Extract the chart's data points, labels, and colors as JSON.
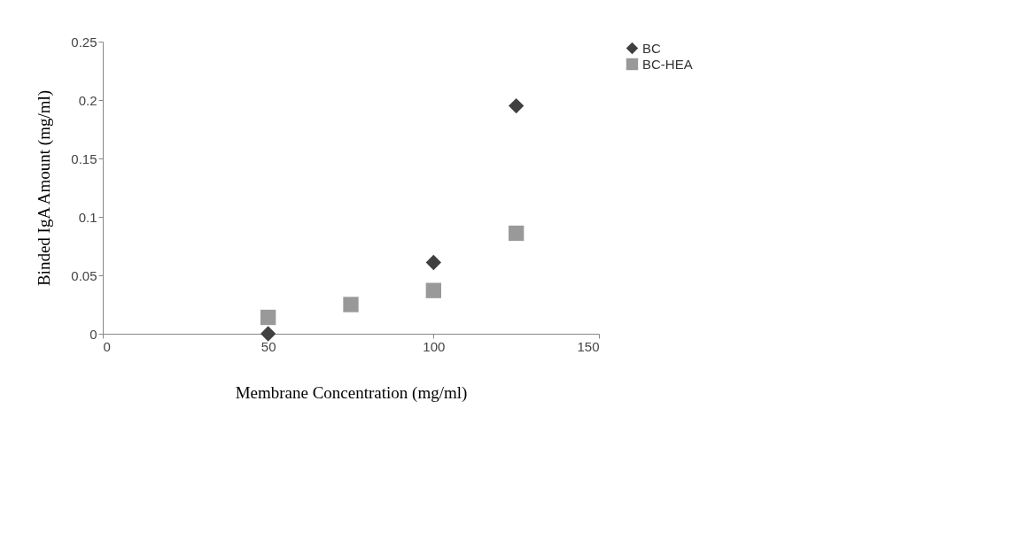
{
  "chart_data": {
    "type": "scatter",
    "xlabel": "Membrane Concentration (mg/ml)",
    "ylabel": "Binded IgA  Amount (mg/ml)",
    "x": [
      50,
      75,
      100,
      125
    ],
    "series": [
      {
        "name": "BC",
        "color": "#404040",
        "marker": "diamond",
        "x": [
          50,
          100,
          125
        ],
        "values": [
          0,
          0.061,
          0.195
        ]
      },
      {
        "name": "BC-HEA",
        "color": "#999999",
        "marker": "square",
        "values": [
          0.014,
          0.025,
          0.037,
          0.086
        ]
      }
    ],
    "xlim": [
      0,
      150
    ],
    "xticks": [
      0,
      50,
      100,
      150
    ],
    "ylim": [
      0,
      0.25
    ],
    "yticks": [
      0,
      0.05,
      0.1,
      0.15,
      0.2,
      0.25
    ],
    "grid": false,
    "legend": "right"
  }
}
